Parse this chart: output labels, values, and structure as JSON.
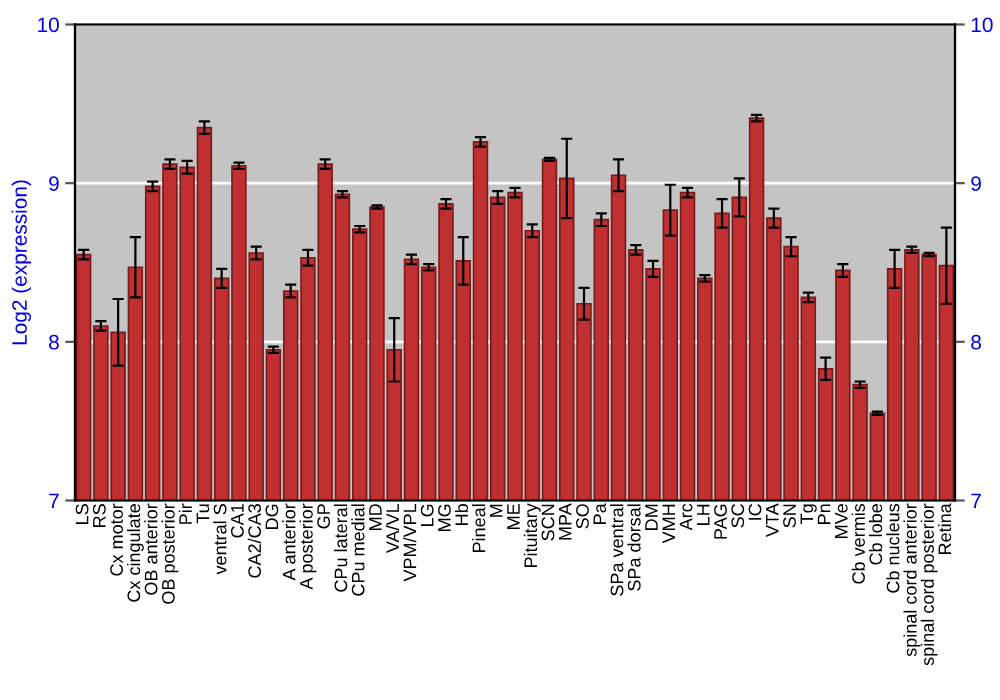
{
  "chart_data": {
    "type": "bar",
    "ylabel": "Log2 (expression)",
    "categories": [
      "LS",
      "RS",
      "Cx motor",
      "Cx cingulate",
      "OB anterior",
      "OB posterior",
      "Pir",
      "Tu",
      "ventral S",
      "CA1",
      "CA2/CA3",
      "DG",
      "A anterior",
      "A posterior",
      "GP",
      "CPu lateral",
      "CPu medial",
      "MD",
      "VA/VL",
      "VPM/VPL",
      "LG",
      "MG",
      "Hb",
      "Pineal",
      "M",
      "ME",
      "Pituitary",
      "SCN",
      "MPA",
      "SO",
      "Pa",
      "SPa ventral",
      "SPa dorsal",
      "DM",
      "VMH",
      "Arc",
      "LH",
      "PAG",
      "SC",
      "IC",
      "VTA",
      "SN",
      "Tg",
      "Pn",
      "MVe",
      "Cb vermis",
      "Cb lobe",
      "Cb nucleus",
      "spinal cord anterior",
      "spinal cord posterior",
      "Retina"
    ],
    "values": [
      8.55,
      8.1,
      8.06,
      8.47,
      8.98,
      9.12,
      9.1,
      9.35,
      8.4,
      9.11,
      8.56,
      7.95,
      8.32,
      8.53,
      9.12,
      8.93,
      8.71,
      8.85,
      7.95,
      8.52,
      8.47,
      8.87,
      8.51,
      9.26,
      8.91,
      8.94,
      8.7,
      9.15,
      9.03,
      8.24,
      8.77,
      9.05,
      8.58,
      8.46,
      8.83,
      8.94,
      8.4,
      8.81,
      8.91,
      9.41,
      8.78,
      8.6,
      8.28,
      7.83,
      8.45,
      7.73,
      7.55,
      8.46,
      8.58,
      8.55,
      8.48
    ],
    "errors": [
      0.03,
      0.03,
      0.21,
      0.19,
      0.03,
      0.03,
      0.04,
      0.04,
      0.06,
      0.02,
      0.04,
      0.02,
      0.04,
      0.05,
      0.03,
      0.02,
      0.02,
      0.01,
      0.2,
      0.03,
      0.02,
      0.03,
      0.15,
      0.03,
      0.04,
      0.03,
      0.04,
      0.01,
      0.25,
      0.1,
      0.04,
      0.1,
      0.03,
      0.05,
      0.16,
      0.03,
      0.02,
      0.09,
      0.12,
      0.02,
      0.06,
      0.06,
      0.03,
      0.07,
      0.04,
      0.02,
      0.01,
      0.12,
      0.02,
      0.01,
      0.24
    ],
    "color": "#c03030",
    "ylim": [
      7,
      10
    ],
    "yticks": [
      7,
      8,
      9,
      10
    ],
    "y2lim": [
      7,
      10
    ],
    "y2ticks": [
      7,
      8,
      9,
      10
    ],
    "grid": "y",
    "legend": false
  }
}
